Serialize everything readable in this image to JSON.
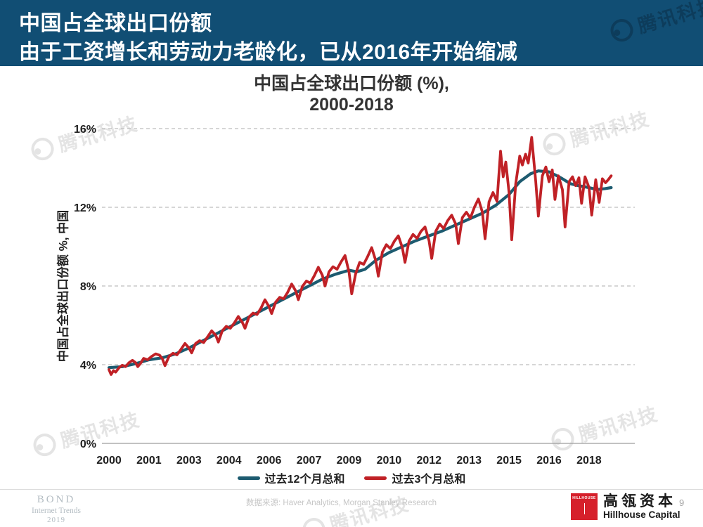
{
  "header": {
    "line1": "中国占全球出口份额",
    "line2": "由于工资增长和劳动力老龄化，已从2016年开始缩减"
  },
  "chart_data": {
    "type": "line",
    "title": "中国占全球出口份额 (%),",
    "title_line2": "2000-2018",
    "ylabel": "中国占全球出口份额 %, 中国",
    "xlabel": "",
    "ylim": [
      0,
      16
    ],
    "grid": "horizontal-dashed",
    "legend_position": "bottom",
    "yticks": [
      {
        "value": 16,
        "label": "16%"
      },
      {
        "value": 12,
        "label": "12%"
      },
      {
        "value": 8,
        "label": "8%"
      },
      {
        "value": 4,
        "label": "4%"
      },
      {
        "value": 0,
        "label": "0%"
      }
    ],
    "xticks": [
      {
        "x": 2000.0,
        "label": "2000"
      },
      {
        "x": 2001.5,
        "label": "2001"
      },
      {
        "x": 2003.0,
        "label": "2003"
      },
      {
        "x": 2004.5,
        "label": "2004"
      },
      {
        "x": 2006.0,
        "label": "2006"
      },
      {
        "x": 2007.5,
        "label": "2007"
      },
      {
        "x": 2009.0,
        "label": "2009"
      },
      {
        "x": 2010.5,
        "label": "2010"
      },
      {
        "x": 2012.0,
        "label": "2012"
      },
      {
        "x": 2013.5,
        "label": "2013"
      },
      {
        "x": 2015.0,
        "label": "2015"
      },
      {
        "x": 2016.5,
        "label": "2016"
      },
      {
        "x": 2018.0,
        "label": "2018"
      }
    ],
    "series": [
      {
        "name": "过去12个月总和",
        "color": "#1d5b70",
        "width": 4.2,
        "points": [
          [
            2000.0,
            3.85
          ],
          [
            2000.5,
            3.9
          ],
          [
            2001.0,
            4.05
          ],
          [
            2001.5,
            4.25
          ],
          [
            2002.0,
            4.35
          ],
          [
            2002.5,
            4.55
          ],
          [
            2003.0,
            4.85
          ],
          [
            2003.5,
            5.2
          ],
          [
            2004.0,
            5.55
          ],
          [
            2004.5,
            5.9
          ],
          [
            2005.0,
            6.25
          ],
          [
            2005.5,
            6.6
          ],
          [
            2006.0,
            6.95
          ],
          [
            2006.5,
            7.3
          ],
          [
            2007.0,
            7.65
          ],
          [
            2007.5,
            8.0
          ],
          [
            2008.0,
            8.35
          ],
          [
            2008.5,
            8.6
          ],
          [
            2009.0,
            8.8
          ],
          [
            2009.3,
            8.72
          ],
          [
            2009.6,
            8.85
          ],
          [
            2010.0,
            9.3
          ],
          [
            2010.5,
            9.7
          ],
          [
            2011.0,
            10.0
          ],
          [
            2011.5,
            10.3
          ],
          [
            2012.0,
            10.55
          ],
          [
            2012.5,
            10.8
          ],
          [
            2013.0,
            11.1
          ],
          [
            2013.5,
            11.4
          ],
          [
            2014.0,
            11.7
          ],
          [
            2014.5,
            12.1
          ],
          [
            2015.0,
            12.65
          ],
          [
            2015.4,
            13.3
          ],
          [
            2015.8,
            13.7
          ],
          [
            2016.1,
            13.85
          ],
          [
            2016.5,
            13.8
          ],
          [
            2016.8,
            13.6
          ],
          [
            2017.0,
            13.45
          ],
          [
            2017.3,
            13.2
          ],
          [
            2017.6,
            13.1
          ],
          [
            2018.0,
            13.0
          ],
          [
            2018.3,
            12.9
          ],
          [
            2018.6,
            12.95
          ],
          [
            2018.83,
            13.0
          ]
        ]
      },
      {
        "name": "过去3个月总和",
        "color": "#c02126",
        "width": 3.8,
        "points": [
          [
            2000.0,
            3.75
          ],
          [
            2000.08,
            3.5
          ],
          [
            2000.17,
            3.7
          ],
          [
            2000.25,
            3.62
          ],
          [
            2000.38,
            3.85
          ],
          [
            2000.5,
            3.97
          ],
          [
            2000.62,
            3.9
          ],
          [
            2000.75,
            4.1
          ],
          [
            2000.88,
            4.22
          ],
          [
            2001.0,
            4.1
          ],
          [
            2001.08,
            3.9
          ],
          [
            2001.2,
            4.1
          ],
          [
            2001.3,
            4.32
          ],
          [
            2001.45,
            4.25
          ],
          [
            2001.6,
            4.42
          ],
          [
            2001.75,
            4.55
          ],
          [
            2001.9,
            4.48
          ],
          [
            2002.0,
            4.3
          ],
          [
            2002.1,
            3.95
          ],
          [
            2002.25,
            4.42
          ],
          [
            2002.4,
            4.58
          ],
          [
            2002.55,
            4.5
          ],
          [
            2002.7,
            4.78
          ],
          [
            2002.85,
            5.08
          ],
          [
            2003.0,
            4.85
          ],
          [
            2003.1,
            4.6
          ],
          [
            2003.25,
            5.08
          ],
          [
            2003.4,
            5.22
          ],
          [
            2003.55,
            5.12
          ],
          [
            2003.7,
            5.42
          ],
          [
            2003.85,
            5.72
          ],
          [
            2004.0,
            5.5
          ],
          [
            2004.1,
            5.15
          ],
          [
            2004.25,
            5.72
          ],
          [
            2004.4,
            5.95
          ],
          [
            2004.55,
            5.85
          ],
          [
            2004.7,
            6.12
          ],
          [
            2004.85,
            6.45
          ],
          [
            2005.0,
            6.15
          ],
          [
            2005.1,
            5.85
          ],
          [
            2005.25,
            6.42
          ],
          [
            2005.4,
            6.62
          ],
          [
            2005.55,
            6.55
          ],
          [
            2005.7,
            6.88
          ],
          [
            2005.85,
            7.3
          ],
          [
            2006.0,
            6.95
          ],
          [
            2006.1,
            6.6
          ],
          [
            2006.25,
            7.18
          ],
          [
            2006.4,
            7.42
          ],
          [
            2006.55,
            7.35
          ],
          [
            2006.7,
            7.68
          ],
          [
            2006.85,
            8.1
          ],
          [
            2007.0,
            7.75
          ],
          [
            2007.1,
            7.3
          ],
          [
            2007.25,
            7.98
          ],
          [
            2007.4,
            8.25
          ],
          [
            2007.55,
            8.15
          ],
          [
            2007.7,
            8.52
          ],
          [
            2007.85,
            8.95
          ],
          [
            2008.0,
            8.55
          ],
          [
            2008.1,
            8.0
          ],
          [
            2008.25,
            8.72
          ],
          [
            2008.4,
            8.98
          ],
          [
            2008.55,
            8.85
          ],
          [
            2008.7,
            9.22
          ],
          [
            2008.85,
            9.55
          ],
          [
            2009.0,
            8.7
          ],
          [
            2009.1,
            7.6
          ],
          [
            2009.25,
            8.62
          ],
          [
            2009.4,
            9.2
          ],
          [
            2009.55,
            9.1
          ],
          [
            2009.7,
            9.5
          ],
          [
            2009.85,
            9.95
          ],
          [
            2010.0,
            9.3
          ],
          [
            2010.1,
            8.5
          ],
          [
            2010.25,
            9.72
          ],
          [
            2010.4,
            10.1
          ],
          [
            2010.55,
            9.9
          ],
          [
            2010.7,
            10.28
          ],
          [
            2010.85,
            10.55
          ],
          [
            2011.0,
            9.95
          ],
          [
            2011.1,
            9.2
          ],
          [
            2011.25,
            10.28
          ],
          [
            2011.4,
            10.62
          ],
          [
            2011.55,
            10.42
          ],
          [
            2011.7,
            10.78
          ],
          [
            2011.85,
            11.0
          ],
          [
            2012.0,
            10.3
          ],
          [
            2012.1,
            9.4
          ],
          [
            2012.25,
            10.78
          ],
          [
            2012.4,
            11.15
          ],
          [
            2012.55,
            10.92
          ],
          [
            2012.7,
            11.32
          ],
          [
            2012.85,
            11.6
          ],
          [
            2013.0,
            11.15
          ],
          [
            2013.1,
            10.15
          ],
          [
            2013.25,
            11.48
          ],
          [
            2013.4,
            11.75
          ],
          [
            2013.55,
            11.45
          ],
          [
            2013.7,
            12.0
          ],
          [
            2013.85,
            12.42
          ],
          [
            2014.0,
            11.75
          ],
          [
            2014.1,
            10.4
          ],
          [
            2014.25,
            12.28
          ],
          [
            2014.4,
            12.75
          ],
          [
            2014.55,
            12.3
          ],
          [
            2014.68,
            14.85
          ],
          [
            2014.78,
            13.55
          ],
          [
            2014.88,
            14.3
          ],
          [
            2015.0,
            12.75
          ],
          [
            2015.1,
            10.35
          ],
          [
            2015.25,
            13.2
          ],
          [
            2015.4,
            14.6
          ],
          [
            2015.5,
            14.15
          ],
          [
            2015.62,
            14.7
          ],
          [
            2015.72,
            14.25
          ],
          [
            2015.85,
            15.55
          ],
          [
            2016.0,
            13.35
          ],
          [
            2016.1,
            11.55
          ],
          [
            2016.25,
            13.6
          ],
          [
            2016.38,
            14.05
          ],
          [
            2016.5,
            13.3
          ],
          [
            2016.62,
            13.9
          ],
          [
            2016.72,
            12.4
          ],
          [
            2016.85,
            13.6
          ],
          [
            2017.0,
            12.9
          ],
          [
            2017.1,
            11.0
          ],
          [
            2017.25,
            13.3
          ],
          [
            2017.38,
            13.55
          ],
          [
            2017.5,
            13.1
          ],
          [
            2017.62,
            13.5
          ],
          [
            2017.72,
            12.2
          ],
          [
            2017.85,
            13.55
          ],
          [
            2018.0,
            13.0
          ],
          [
            2018.1,
            11.6
          ],
          [
            2018.25,
            13.4
          ],
          [
            2018.38,
            12.25
          ],
          [
            2018.5,
            13.45
          ],
          [
            2018.62,
            13.25
          ],
          [
            2018.72,
            13.4
          ],
          [
            2018.83,
            13.6
          ]
        ]
      }
    ]
  },
  "watermark": {
    "text": "腾讯科技"
  },
  "footer": {
    "bond_line1": "BOND",
    "bond_line2": "Internet Trends",
    "bond_line3": "2019",
    "source": "数据来源: Haver Analytics, Morgan Stanley Research",
    "hillhouse_logo_text": "HILLHOUSE",
    "hillhouse_cn": "高瓴资本",
    "hillhouse_en": "Hillhouse Capital",
    "page_number": "9"
  },
  "colors": {
    "header_bg": "#114e74",
    "grid": "#bdbdbd",
    "axis": "#9e9e9e",
    "hillhouse_red": "#d6202b"
  }
}
